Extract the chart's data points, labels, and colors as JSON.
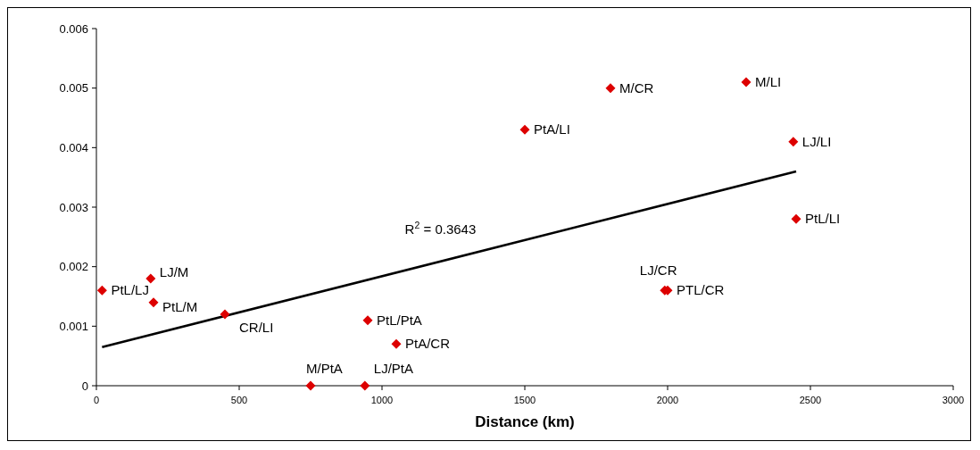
{
  "chart_data": {
    "type": "scatter",
    "xlabel": "Distance (km)",
    "xlim": [
      0,
      3000
    ],
    "xticks": [
      0,
      500,
      1000,
      1500,
      2000,
      2500,
      3000
    ],
    "ylim": [
      0,
      0.006
    ],
    "yticks": [
      0,
      0.001,
      0.002,
      0.003,
      0.004,
      0.005,
      0.006
    ],
    "grid": false,
    "series": [
      {
        "marker": "diamond",
        "color": "#dd0000",
        "x": [
          20,
          190,
          200,
          450,
          750,
          940,
          950,
          1050,
          1500,
          1800,
          2275,
          2440,
          2450,
          1990,
          2000
        ],
        "values": [
          0.0016,
          0.0018,
          0.0014,
          0.0012,
          0,
          0,
          0.0011,
          0.0007,
          0.0043,
          0.005,
          0.0051,
          0.0041,
          0.0028,
          0.0016,
          0.0016
        ]
      },
      {
        "type": "line",
        "color": "#000000",
        "x": [
          20,
          2450
        ],
        "values": [
          0.00065,
          0.0036
        ]
      }
    ],
    "annotations": [
      {
        "text": "PtL/LJ",
        "x": 20,
        "y": 0.0016
      },
      {
        "text": "LJ/M",
        "x": 190,
        "y": 0.0018
      },
      {
        "text": "PtL/M",
        "x": 200,
        "y": 0.0014
      },
      {
        "text": "CR/LI",
        "x": 450,
        "y": 0.0012
      },
      {
        "text": "M/PtA",
        "x": 750,
        "y": 0
      },
      {
        "text": "LJ/PtA",
        "x": 940,
        "y": 0
      },
      {
        "text": "PtL/PtA",
        "x": 950,
        "y": 0.0011
      },
      {
        "text": "PtA/CR",
        "x": 1050,
        "y": 0.0007
      },
      {
        "text": "PtA/LI",
        "x": 1500,
        "y": 0.0043
      },
      {
        "text": "M/CR",
        "x": 1800,
        "y": 0.005
      },
      {
        "text": "M/LI",
        "x": 2275,
        "y": 0.0051
      },
      {
        "text": "LJ/LI",
        "x": 2440,
        "y": 0.0041
      },
      {
        "text": "PtL/LI",
        "x": 2450,
        "y": 0.0028
      },
      {
        "text": "LJ/CR",
        "x": 1990,
        "y": 0.0016
      },
      {
        "text": "PTL/CR",
        "x": 2000,
        "y": 0.0016
      },
      "R$^{2}$ = 0.3643"
    ]
  }
}
